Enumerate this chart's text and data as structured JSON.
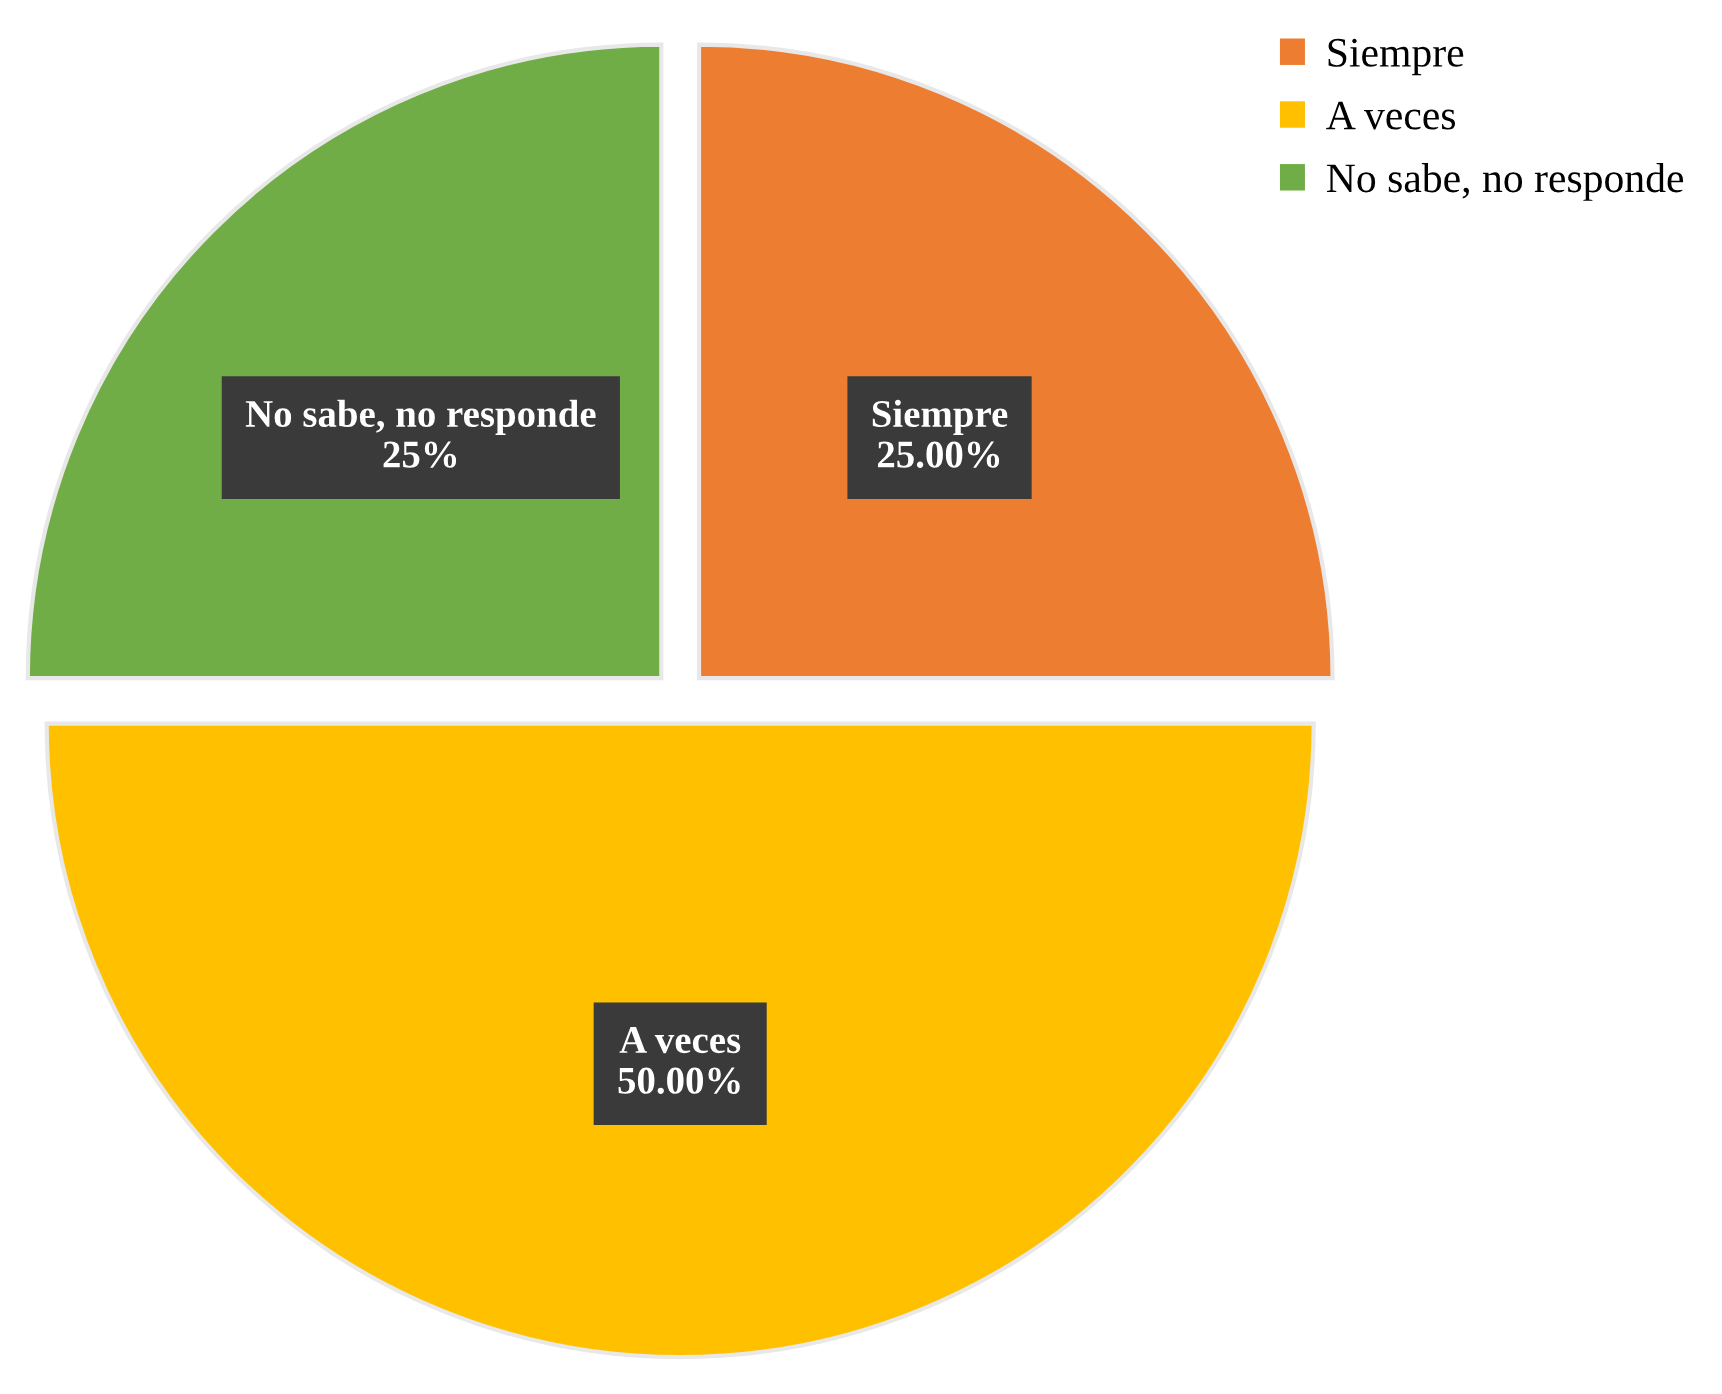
{
  "chart_data": {
    "type": "pie",
    "categories": [
      "Siempre",
      "A veces",
      "No sabe, no responde"
    ],
    "values": [
      25,
      50,
      25
    ],
    "colors": [
      "#ed7d31",
      "#ffc000",
      "#70ad47"
    ],
    "value_labels": [
      "25.00%",
      "50.00%",
      "25%"
    ],
    "legend": "top right"
  }
}
